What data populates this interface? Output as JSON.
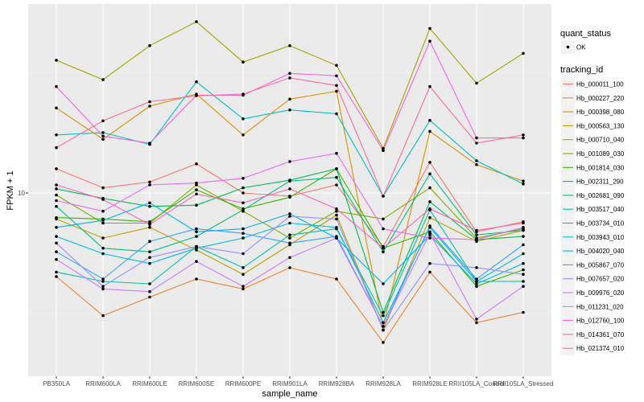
{
  "chart_data": {
    "type": "line",
    "title": "",
    "xlabel": "sample_name",
    "ylabel": "FPKM + 1",
    "y_scale": "log10",
    "y_ticks": [
      10
    ],
    "y_tick_labels": [
      "10"
    ],
    "grid": true,
    "legend_position": "right",
    "categories": [
      "PB350LA",
      "RRIM600LA",
      "RRIM600LE",
      "RRIM600SE",
      "RRIM600PE",
      "RRIM901LA",
      "RRIM928BA",
      "RRIM928LA",
      "RRIM928LE",
      "RRII105LA_Control",
      "RRII105LA_Stressed"
    ],
    "x_tick_labels": [
      "PB350LA",
      "RRIM600LA",
      "RRIM600LE",
      "RRIM600SE",
      "RRIM600PE",
      "RRIM901LA",
      "RRIM928BA",
      "RRIM928LA",
      "RRIM928LE",
      "RRII105LA_Control",
      "RRII105LA_Stressed"
    ],
    "point_legend": {
      "title": "quant_status",
      "entries": [
        "OK"
      ]
    },
    "line_legend_title": "tracking_id",
    "series": [
      {
        "name": "Hb_000011_100",
        "color": "#F8766D",
        "values": [
          12.6,
          10.5,
          11.1,
          13.2,
          10.0,
          9.7,
          10.8,
          6.0,
          13.4,
          6.9,
          7.6
        ]
      },
      {
        "name": "Hb_000227_220",
        "color": "#EA8331",
        "values": [
          4.5,
          3.1,
          3.7,
          4.4,
          4.0,
          4.9,
          4.4,
          2.4,
          4.7,
          2.9,
          3.2
        ]
      },
      {
        "name": "Hb_000398_080",
        "color": "#D89000",
        "values": [
          22.5,
          16.7,
          22.9,
          25.7,
          17.4,
          24.5,
          26.4,
          2.8,
          18.0,
          13.1,
          11.2
        ]
      },
      {
        "name": "Hb_000563_130",
        "color": "#C09B00",
        "values": [
          7.8,
          6.5,
          7.2,
          5.8,
          4.6,
          6.1,
          8.1,
          2.7,
          7.9,
          6.3,
          7.0
        ]
      },
      {
        "name": "Hb_000710_040",
        "color": "#A3A500",
        "values": [
          35.5,
          29.5,
          40.8,
          51.3,
          34.9,
          40.8,
          33.8,
          15.3,
          48.1,
          28.5,
          37.9
        ]
      },
      {
        "name": "Hb_001089_030",
        "color": "#7CAE00",
        "values": [
          9.8,
          7.5,
          7.5,
          10.8,
          8.4,
          6.5,
          8.4,
          7.8,
          10.5,
          6.5,
          7.1
        ]
      },
      {
        "name": "Hb_001814_030",
        "color": "#39B600",
        "values": [
          7.9,
          7.8,
          7.6,
          10.3,
          8.6,
          9.6,
          12.6,
          5.9,
          6.9,
          4.1,
          4.8
        ]
      },
      {
        "name": "Hb_002311_290",
        "color": "#00BB4E",
        "values": [
          10.4,
          9.5,
          8.8,
          8.9,
          10.5,
          11.3,
          12.6,
          3.2,
          9.2,
          6.4,
          6.6
        ]
      },
      {
        "name": "Hb_002681_090",
        "color": "#00BF7D",
        "values": [
          8.8,
          5.9,
          5.7,
          6.6,
          8.5,
          11.2,
          11.6,
          5.7,
          12.0,
          6.7,
          7.0
        ]
      },
      {
        "name": "Hb_003517_040",
        "color": "#00C1A3",
        "values": [
          4.7,
          4.3,
          4.2,
          6.0,
          4.9,
          6.7,
          7.1,
          3.1,
          8.5,
          4.3,
          4.3
        ]
      },
      {
        "name": "Hb_003734_010",
        "color": "#00BFC4",
        "values": [
          17.4,
          17.8,
          15.9,
          28.9,
          20.3,
          22.1,
          21.3,
          9.7,
          20.0,
          13.6,
          10.9
        ]
      },
      {
        "name": "Hb_003943_010",
        "color": "#00BAE0",
        "values": [
          6.6,
          5.6,
          5.1,
          5.9,
          6.5,
          7.5,
          7.2,
          2.9,
          7.2,
          4.3,
          5.6
        ]
      },
      {
        "name": "Hb_004020_040",
        "color": "#00B0F6",
        "values": [
          7.2,
          7.7,
          9.1,
          6.9,
          7.1,
          8.2,
          6.5,
          4.2,
          6.7,
          4.2,
          5.1
        ]
      },
      {
        "name": "Hb_005867_070",
        "color": "#35A2FF",
        "values": [
          5.7,
          4.4,
          6.3,
          7.1,
          6.8,
          6.2,
          6.6,
          2.8,
          7.3,
          4.4,
          6.1
        ]
      },
      {
        "name": "Hb_007657_020",
        "color": "#9590FF",
        "values": [
          6.2,
          4.1,
          5.4,
          6.0,
          5.6,
          8.0,
          7.8,
          2.7,
          5.1,
          4.9,
          4.6
        ]
      },
      {
        "name": "Hb_009976_020",
        "color": "#C77CFF",
        "values": [
          5.3,
          4.0,
          3.9,
          5.2,
          4.1,
          5.4,
          6.5,
          2.8,
          6.8,
          3.0,
          4.1
        ]
      },
      {
        "name": "Hb_011231_020",
        "color": "#E76BF3",
        "values": [
          9.3,
          8.4,
          10.8,
          11.0,
          11.5,
          13.5,
          14.6,
          7.1,
          6.5,
          6.4,
          7.2
        ]
      },
      {
        "name": "Hb_012760_100",
        "color": "#FA62DB",
        "values": [
          27.6,
          17.2,
          16.1,
          25.4,
          25.4,
          31.3,
          30.6,
          15.0,
          42.6,
          16.9,
          16.9
        ]
      },
      {
        "name": "Hb_014361_070",
        "color": "#FF62BC",
        "values": [
          10.8,
          9.4,
          7.4,
          9.9,
          9.1,
          10.4,
          8.6,
          5.9,
          8.6,
          7.0,
          7.5
        ]
      },
      {
        "name": "Hb_021374_010",
        "color": "#FF6C91",
        "values": [
          15.4,
          19.9,
          23.9,
          25.3,
          25.7,
          30.0,
          27.9,
          9.7,
          27.6,
          16.1,
          17.4
        ]
      }
    ]
  }
}
